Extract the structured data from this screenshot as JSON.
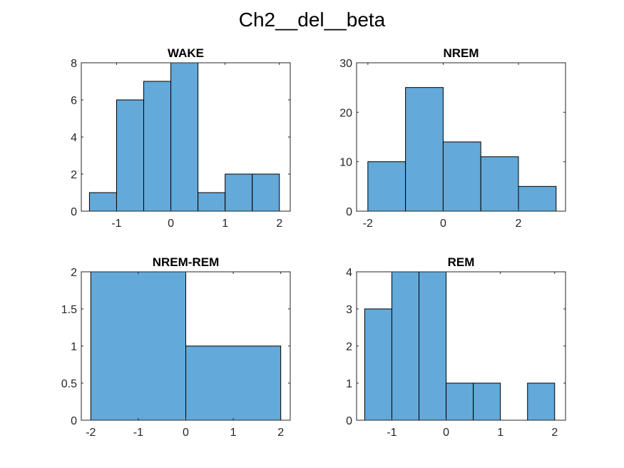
{
  "figure": {
    "title": "Ch2__del__beta"
  },
  "chart_data": [
    {
      "type": "bar",
      "title": "WAKE",
      "xlim": [
        -1.65,
        2.2
      ],
      "ylim": [
        0,
        8
      ],
      "xticks": [
        -1,
        0,
        1,
        2
      ],
      "xtick_labels": [
        "-1",
        "0",
        "1",
        "2"
      ],
      "yticks": [
        0,
        2,
        4,
        6,
        8
      ],
      "ytick_labels": [
        "0",
        "2",
        "4",
        "6",
        "8"
      ],
      "bin_edges": [
        -1.5,
        -1.0,
        -0.5,
        0.0,
        0.5,
        1.0,
        1.5,
        2.0
      ],
      "values": [
        1,
        6,
        7,
        8,
        1,
        2,
        2
      ]
    },
    {
      "type": "bar",
      "title": "NREM",
      "xlim": [
        -2.3,
        3.25
      ],
      "ylim": [
        0,
        30
      ],
      "xticks": [
        -2,
        0,
        2
      ],
      "xtick_labels": [
        "-2",
        "0",
        "2"
      ],
      "yticks": [
        0,
        10,
        20,
        30
      ],
      "ytick_labels": [
        "0",
        "10",
        "20",
        "30"
      ],
      "bin_edges": [
        -2,
        -1,
        0,
        1,
        2,
        3
      ],
      "values": [
        10,
        25,
        14,
        11,
        5
      ]
    },
    {
      "type": "bar",
      "title": "NREM-REM",
      "xlim": [
        -2.2,
        2.2
      ],
      "ylim": [
        0,
        2
      ],
      "xticks": [
        -2,
        -1,
        0,
        1,
        2
      ],
      "xtick_labels": [
        "-2",
        "-1",
        "0",
        "1",
        "2"
      ],
      "yticks": [
        0,
        0.5,
        1,
        1.5,
        2
      ],
      "ytick_labels": [
        "0",
        "0.5",
        "1",
        "1.5",
        "2"
      ],
      "bin_edges": [
        -2,
        0,
        2
      ],
      "values": [
        2,
        1
      ]
    },
    {
      "type": "bar",
      "title": "REM",
      "xlim": [
        -1.65,
        2.2
      ],
      "ylim": [
        0,
        4
      ],
      "xticks": [
        -1,
        0,
        1,
        2
      ],
      "xtick_labels": [
        "-1",
        "0",
        "1",
        "2"
      ],
      "yticks": [
        0,
        1,
        2,
        3,
        4
      ],
      "ytick_labels": [
        "0",
        "1",
        "2",
        "3",
        "4"
      ],
      "bin_edges": [
        -1.5,
        -1.0,
        -0.5,
        0.0,
        0.5,
        1.0,
        1.5,
        2.0
      ],
      "values": [
        3,
        4,
        4,
        1,
        1,
        0,
        1
      ]
    }
  ]
}
